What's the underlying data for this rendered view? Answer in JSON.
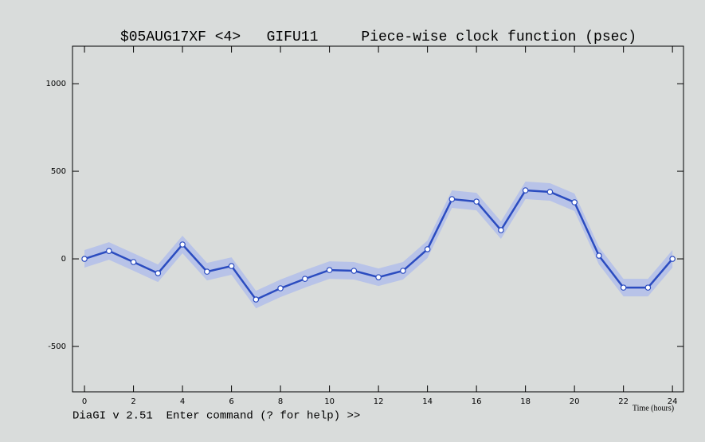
{
  "chart_data": {
    "type": "line",
    "title": "$05AUG17XF <4>   GIFU11     Piece-wise clock function (psec)",
    "x_label": "Time (hours)",
    "x": [
      0,
      1,
      2,
      3,
      4,
      5,
      6,
      7,
      8,
      9,
      10,
      11,
      12,
      13,
      14,
      15,
      16,
      17,
      18,
      19,
      20,
      21,
      22,
      23,
      24
    ],
    "series": [
      {
        "color": "#2b4cc0",
        "band_color": "#aab8ee",
        "values": [
          0,
          45,
          -18,
          -82,
          82,
          -73,
          -41,
          -232,
          -168,
          -114,
          -64,
          -68,
          -105,
          -68,
          55,
          341,
          327,
          164,
          391,
          382,
          323,
          18,
          -164,
          -164,
          0
        ],
        "errors": [
          50,
          50,
          50,
          50,
          50,
          50,
          50,
          50,
          50,
          50,
          50,
          50,
          50,
          50,
          50,
          50,
          50,
          50,
          50,
          50,
          50,
          50,
          50,
          50,
          50
        ]
      }
    ],
    "xlim": [
      -0.49,
      24.45
    ],
    "xticks": [
      0,
      2,
      4,
      6,
      8,
      10,
      12,
      14,
      16,
      18,
      20,
      22,
      24
    ],
    "ylim": [
      -759,
      1214
    ],
    "yticks": [
      -500,
      0,
      500,
      1000
    ],
    "status_line": "DiaGI v 2.51  Enter command (? for help) >>"
  }
}
